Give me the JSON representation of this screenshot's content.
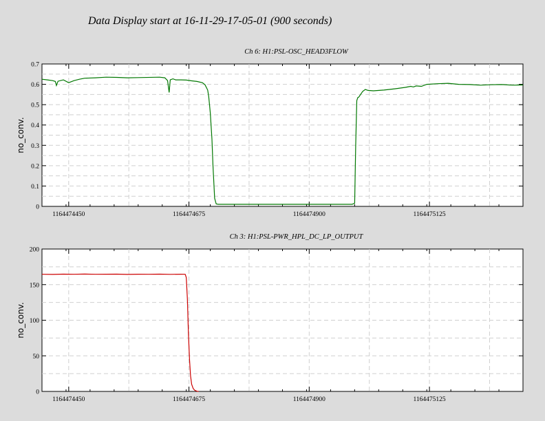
{
  "page_title": "Data Display start at 16-11-29-17-05-01 (900 seconds)",
  "colors": {
    "background": "#dcdcdc",
    "plot_bg": "#ffffff",
    "ch6": "#007700",
    "ch3": "#cc0000",
    "grid": "#cfcfcf"
  },
  "chart_data": [
    {
      "type": "line",
      "title": "Ch 6: H1:PSL-OSC_HEAD3FLOW",
      "ylabel": "no_conv.",
      "xlabel": "",
      "xlim": [
        1164474400,
        1164475300
      ],
      "ylim": [
        0,
        0.7
      ],
      "yticks": [
        0,
        0.1,
        0.2,
        0.3,
        0.4,
        0.5,
        0.6,
        0.7
      ],
      "xticks": [
        1164474450,
        1164474675,
        1164474900,
        1164475125
      ],
      "ytick_labels": [
        "0",
        "0.1",
        "0.2",
        "0.3",
        "0.4",
        "0.5",
        "0.6",
        "0.7"
      ],
      "xtick_labels": [
        "1164474450",
        "1164474675",
        "1164474900",
        "1164475125"
      ],
      "grid": true,
      "series": [
        {
          "color": "#007700",
          "x": [
            1164474400,
            1164474410,
            1164474420,
            1164474425,
            1164474427,
            1164474430,
            1164474440,
            1164474450,
            1164474460,
            1164474470,
            1164474480,
            1164474500,
            1164474520,
            1164474540,
            1164474560,
            1164474580,
            1164474620,
            1164474630,
            1164474635,
            1164474638,
            1164474640,
            1164474645,
            1164474650,
            1164474660,
            1164474670,
            1164474680,
            1164474690,
            1164474700,
            1164474705,
            1164474710,
            1164474712,
            1164474715,
            1164474718,
            1164474720,
            1164474723,
            1164474726,
            1164474730,
            1164474740,
            1164474760,
            1164474800,
            1164474850,
            1164474900,
            1164474950,
            1164474965,
            1164474980,
            1164474985,
            1164474987,
            1164474989,
            1164474991,
            1164474993,
            1164474996,
            1164475000,
            1164475005,
            1164475010,
            1164475020,
            1164475040,
            1164475060,
            1164475080,
            1164475090,
            1164475095,
            1164475100,
            1164475110,
            1164475120,
            1164475140,
            1164475160,
            1164475180,
            1164475200,
            1164475220,
            1164475240,
            1164475260,
            1164475280,
            1164475300
          ],
          "y": [
            0.625,
            0.622,
            0.618,
            0.614,
            0.594,
            0.615,
            0.622,
            0.608,
            0.618,
            0.625,
            0.63,
            0.632,
            0.635,
            0.634,
            0.632,
            0.633,
            0.635,
            0.632,
            0.618,
            0.56,
            0.622,
            0.627,
            0.622,
            0.622,
            0.621,
            0.617,
            0.614,
            0.608,
            0.598,
            0.572,
            0.54,
            0.46,
            0.33,
            0.2,
            0.04,
            0.012,
            0.01,
            0.01,
            0.01,
            0.01,
            0.01,
            0.01,
            0.01,
            0.01,
            0.01,
            0.015,
            0.3,
            0.52,
            0.535,
            0.538,
            0.55,
            0.565,
            0.575,
            0.57,
            0.568,
            0.572,
            0.578,
            0.585,
            0.59,
            0.587,
            0.592,
            0.59,
            0.6,
            0.603,
            0.605,
            0.6,
            0.599,
            0.596,
            0.598,
            0.599,
            0.596,
            0.597
          ]
        }
      ]
    },
    {
      "type": "line",
      "title": "Ch 3: H1:PSL-PWR_HPL_DC_LP_OUTPUT",
      "ylabel": "no_conv.",
      "xlabel": "",
      "xlim": [
        1164474400,
        1164475300
      ],
      "ylim": [
        0,
        200
      ],
      "yticks": [
        0,
        50,
        100,
        150,
        200
      ],
      "xticks": [
        1164474450,
        1164474675,
        1164474900,
        1164475125
      ],
      "ytick_labels": [
        "0",
        "50",
        "100",
        "150",
        "200"
      ],
      "xtick_labels": [
        "1164474450",
        "1164474675",
        "1164474900",
        "1164475125"
      ],
      "grid": true,
      "series": [
        {
          "color": "#cc0000",
          "x": [
            1164474400,
            1164474420,
            1164474440,
            1164474460,
            1164474480,
            1164474500,
            1164474520,
            1164474540,
            1164474560,
            1164474580,
            1164474600,
            1164474620,
            1164474640,
            1164474660,
            1164474668,
            1164474670,
            1164474672,
            1164474674,
            1164474676,
            1164474678,
            1164474680,
            1164474683,
            1164474686,
            1164474690,
            1164474693
          ],
          "y": [
            164.5,
            164.3,
            164.7,
            164.5,
            164.8,
            164.5,
            164.6,
            164.7,
            164.3,
            164.6,
            164.5,
            164.7,
            164.4,
            164.6,
            164.5,
            160,
            130,
            82,
            45,
            22,
            10,
            4,
            1.5,
            0.3,
            0
          ]
        }
      ]
    }
  ]
}
